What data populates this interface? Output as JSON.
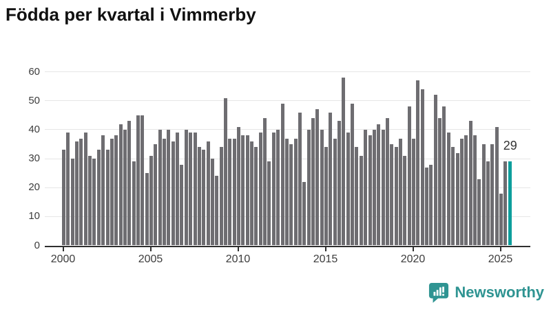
{
  "title": "Födda per kvartal i Vimmerby",
  "chart_data": {
    "type": "bar",
    "title": "Födda per kvartal i Vimmerby",
    "xlabel": "",
    "ylabel": "",
    "start_year": 2000,
    "start_quarter": 1,
    "values": [
      33,
      39,
      30,
      36,
      37,
      39,
      31,
      30,
      33,
      38,
      33,
      37,
      38,
      42,
      40,
      43,
      29,
      45,
      45,
      25,
      31,
      35,
      40,
      37,
      40,
      36,
      39,
      28,
      40,
      39,
      39,
      34,
      33,
      36,
      30,
      24,
      34,
      51,
      37,
      37,
      41,
      38,
      38,
      36,
      34,
      39,
      44,
      29,
      39,
      40,
      49,
      37,
      35,
      37,
      46,
      22,
      40,
      44,
      47,
      40,
      34,
      46,
      37,
      43,
      58,
      39,
      49,
      34,
      31,
      40,
      38,
      40,
      42,
      40,
      44,
      35,
      34,
      37,
      31,
      48,
      37,
      57,
      54,
      27,
      28,
      52,
      44,
      48,
      39,
      34,
      32,
      37,
      38,
      43,
      38,
      23,
      35,
      29,
      35,
      41,
      18,
      29,
      29
    ],
    "highlight_last": true,
    "annotation_label": "29",
    "ylim": [
      0,
      60
    ],
    "yticks": [
      0,
      10,
      20,
      30,
      40,
      50,
      60
    ],
    "xticks": [
      2000,
      2005,
      2010,
      2015,
      2020,
      2025
    ],
    "grid": "horizontal",
    "legend": "none",
    "colors": {
      "bar": "#6e6d71",
      "highlight": "#0d9e9c",
      "grid": "#e6e6e6",
      "axis": "#2e2e2e",
      "tick_text": "#3c3c3c",
      "title_text": "#111111",
      "annotation_text": "#333333"
    }
  },
  "branding": {
    "logo_text": "Newsworthy",
    "logo_color": "#2f9492"
  }
}
